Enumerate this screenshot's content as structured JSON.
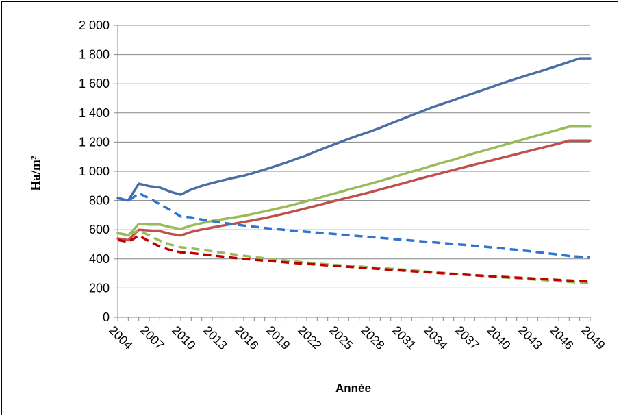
{
  "chart_data": {
    "type": "line",
    "title": "",
    "xlabel": "Année",
    "ylabel": "Ha/m²",
    "ylim": [
      0,
      2000
    ],
    "yticks": [
      "0",
      "200",
      "400",
      "600",
      "800",
      "1 000",
      "1 200",
      "1 400",
      "1 600",
      "1 800",
      "2 000"
    ],
    "xticks": [
      "2004",
      "2007",
      "2010",
      "2013",
      "2016",
      "2019",
      "2022",
      "2025",
      "2028",
      "2031",
      "2034",
      "2037",
      "2040",
      "2043",
      "2046",
      "2049"
    ],
    "grid": true,
    "legend": "none",
    "x": [
      2004,
      2005,
      2006,
      2007,
      2008,
      2009,
      2010,
      2011,
      2012,
      2013,
      2014,
      2015,
      2016,
      2017,
      2018,
      2019,
      2020,
      2021,
      2022,
      2023,
      2024,
      2025,
      2026,
      2027,
      2028,
      2029,
      2030,
      2031,
      2032,
      2033,
      2034,
      2035,
      2036,
      2037,
      2038,
      2039,
      2040,
      2041,
      2042,
      2043,
      2044,
      2045,
      2046,
      2047,
      2048,
      2049
    ],
    "series": [
      {
        "color": "#4a6fa5",
        "style": "solid",
        "values": [
          815,
          800,
          915,
          898,
          889,
          860,
          840,
          875,
          900,
          920,
          938,
          955,
          970,
          990,
          1012,
          1035,
          1058,
          1085,
          1110,
          1140,
          1168,
          1195,
          1222,
          1248,
          1272,
          1298,
          1328,
          1356,
          1384,
          1412,
          1440,
          1464,
          1488,
          1514,
          1538,
          1562,
          1588,
          1612,
          1635,
          1658,
          1680,
          1703,
          1726,
          1750,
          1774,
          1774
        ]
      },
      {
        "color": "#9bbb59",
        "style": "solid",
        "values": [
          578,
          560,
          640,
          635,
          635,
          618,
          605,
          628,
          645,
          660,
          672,
          683,
          695,
          710,
          726,
          742,
          758,
          776,
          795,
          815,
          836,
          855,
          875,
          894,
          914,
          934,
          955,
          976,
          998,
          1018,
          1040,
          1060,
          1080,
          1103,
          1124,
          1144,
          1165,
          1185,
          1205,
          1226,
          1246,
          1266,
          1286,
          1306,
          1306,
          1306
        ]
      },
      {
        "color": "#c0504d",
        "style": "solid",
        "values": [
          540,
          528,
          600,
          595,
          590,
          572,
          560,
          585,
          602,
          615,
          628,
          640,
          653,
          666,
          680,
          696,
          712,
          730,
          748,
          766,
          785,
          803,
          820,
          838,
          856,
          875,
          895,
          914,
          934,
          954,
          972,
          991,
          1010,
          1028,
          1046,
          1064,
          1082,
          1100,
          1118,
          1136,
          1154,
          1172,
          1190,
          1210,
          1210,
          1210
        ]
      },
      {
        "color": "#2e75d0",
        "style": "dashed",
        "values": [
          820,
          795,
          850,
          815,
          775,
          735,
          690,
          685,
          670,
          658,
          648,
          638,
          628,
          620,
          612,
          605,
          598,
          592,
          586,
          580,
          574,
          568,
          562,
          556,
          550,
          544,
          538,
          532,
          526,
          520,
          514,
          508,
          502,
          496,
          490,
          483,
          476,
          469,
          462,
          454,
          446,
          438,
          430,
          420,
          415,
          410
        ]
      },
      {
        "color": "#9bbb59",
        "style": "dashed",
        "values": [
          575,
          565,
          595,
          560,
          525,
          498,
          480,
          472,
          462,
          452,
          442,
          432,
          422,
          413,
          404,
          396,
          388,
          381,
          374,
          368,
          362,
          357,
          352,
          348,
          343,
          338,
          333,
          328,
          322,
          316,
          310,
          304,
          298,
          292,
          287,
          282,
          277,
          272,
          267,
          262,
          257,
          252,
          247,
          242,
          238,
          234
        ]
      },
      {
        "color": "#c00000",
        "style": "dashed",
        "values": [
          530,
          515,
          560,
          520,
          485,
          460,
          445,
          440,
          432,
          424,
          416,
          408,
          400,
          394,
          388,
          382,
          376,
          371,
          366,
          361,
          356,
          351,
          346,
          341,
          336,
          331,
          326,
          321,
          316,
          311,
          306,
          301,
          296,
          292,
          288,
          284,
          280,
          276,
          272,
          268,
          264,
          260,
          256,
          252,
          248,
          245
        ]
      }
    ]
  }
}
